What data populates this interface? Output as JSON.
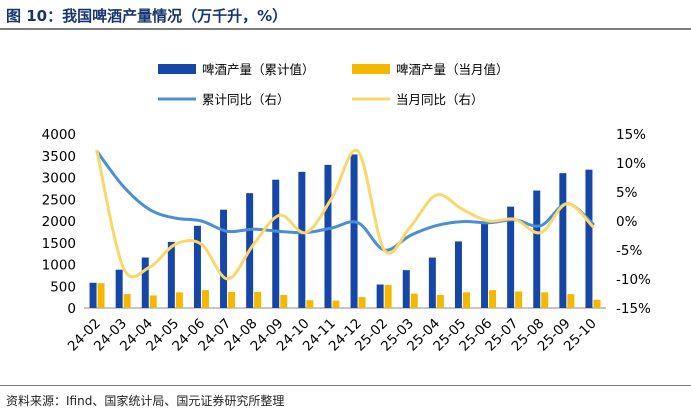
{
  "header": {
    "title": "图 10：我国啤酒产量情况（万千升，%）"
  },
  "footer": {
    "source": "资料来源：Ifind、国家统计局、国元证券研究所整理"
  },
  "colors": {
    "cum_bar": "#1747a6",
    "mon_bar": "#f5b800",
    "cum_line": "#4a8fd6",
    "mon_line": "#f8d86a",
    "title": "#17366f"
  },
  "chart_data": {
    "type": "bar",
    "categories": [
      "24-02",
      "24-03",
      "24-04",
      "24-05",
      "24-06",
      "24-07",
      "24-08",
      "24-09",
      "24-10",
      "24-11",
      "24-12",
      "25-02",
      "25-03",
      "25-04",
      "25-05",
      "25-06",
      "25-07",
      "25-08",
      "25-09",
      "25-10"
    ],
    "series": [
      {
        "name": "啤酒产量（累计值）",
        "type": "bar",
        "axis": "left",
        "values": [
          580,
          880,
          1160,
          1520,
          1890,
          2260,
          2640,
          2950,
          3130,
          3290,
          3530,
          540,
          870,
          1160,
          1530,
          1930,
          2330,
          2700,
          3100,
          3180
        ]
      },
      {
        "name": "啤酒产量（当月值）",
        "type": "bar",
        "axis": "left",
        "values": [
          570,
          320,
          290,
          360,
          410,
          370,
          370,
          300,
          180,
          170,
          250,
          530,
          330,
          300,
          360,
          410,
          380,
          360,
          320,
          190
        ]
      },
      {
        "name": "累计同比（右）",
        "type": "line",
        "axis": "right",
        "values": [
          12,
          6,
          2,
          0.5,
          0,
          -1.8,
          -1.4,
          -1.8,
          -2,
          -1.2,
          -0.3,
          -5,
          -2.5,
          -0.8,
          -0.1,
          -0.3,
          0.2,
          -0.8,
          3,
          -0.5
        ]
      },
      {
        "name": "当月同比（右）",
        "type": "line",
        "axis": "right",
        "values": [
          12,
          -8,
          -8,
          -4,
          -4,
          -10,
          -4,
          1,
          -2,
          4,
          12,
          -5,
          -1,
          4.5,
          2,
          0,
          0.3,
          -2,
          3,
          -1
        ]
      }
    ],
    "y_left": {
      "min": 0,
      "max": 4000,
      "ticks": [
        "0",
        "500",
        "1000",
        "1500",
        "2000",
        "2500",
        "3000",
        "3500",
        "4000"
      ]
    },
    "y_right": {
      "min": -15,
      "max": 15,
      "ticks": [
        "-15%",
        "-10%",
        "-5%",
        "0%",
        "5%",
        "10%",
        "15%"
      ]
    },
    "legend_position": "top",
    "grid": false
  }
}
